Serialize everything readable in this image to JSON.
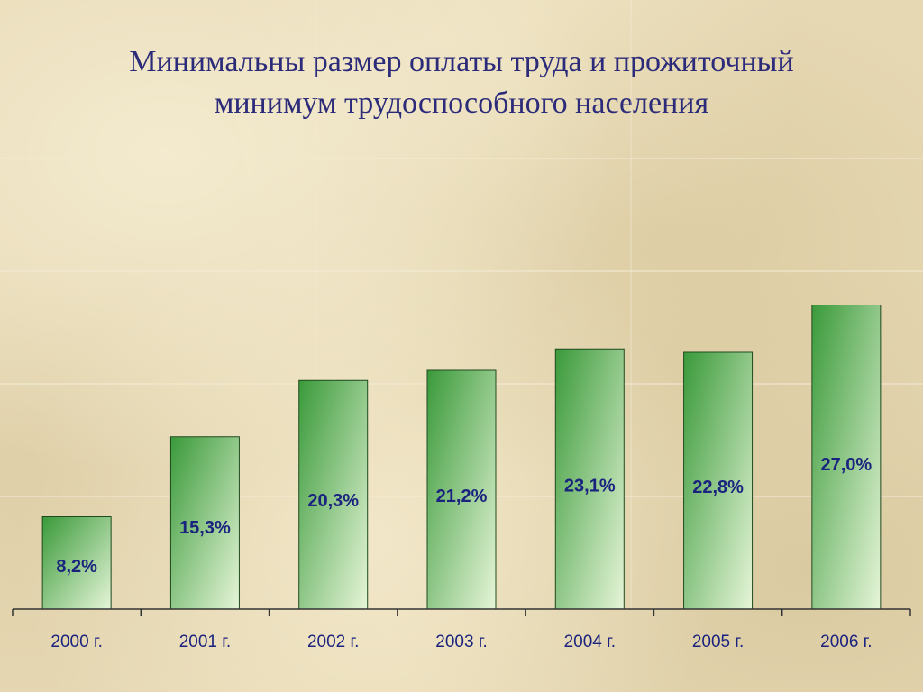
{
  "title_lines": [
    "Минимальны размер оплаты труда и прожиточный",
    "минимум трудоспособного населения"
  ],
  "chart_data": {
    "type": "bar",
    "title": "Минимальны размер оплаты труда и прожиточный минимум трудоспособного населения",
    "categories": [
      "2000 г.",
      "2001 г.",
      "2002 г.",
      "2003 г.",
      "2004 г.",
      "2005 г.",
      "2006 г."
    ],
    "values": [
      8.2,
      15.3,
      20.3,
      21.2,
      23.1,
      22.8,
      27.0
    ],
    "value_labels": [
      "8,2%",
      "15,3%",
      "20,3%",
      "21,2%",
      "23,1%",
      "22,8%",
      "27,0%"
    ],
    "xlabel": "",
    "ylabel": "",
    "ylim": [
      0,
      40
    ],
    "grid": true,
    "legend": "none",
    "colors": {
      "bar_dark": "#3a9a3a",
      "bar_light": "#e6f5d8",
      "bar_stroke": "#1f4a1f",
      "label_text": "#1a237e",
      "axis": "#333333",
      "grid": "#f4ecd6"
    }
  }
}
